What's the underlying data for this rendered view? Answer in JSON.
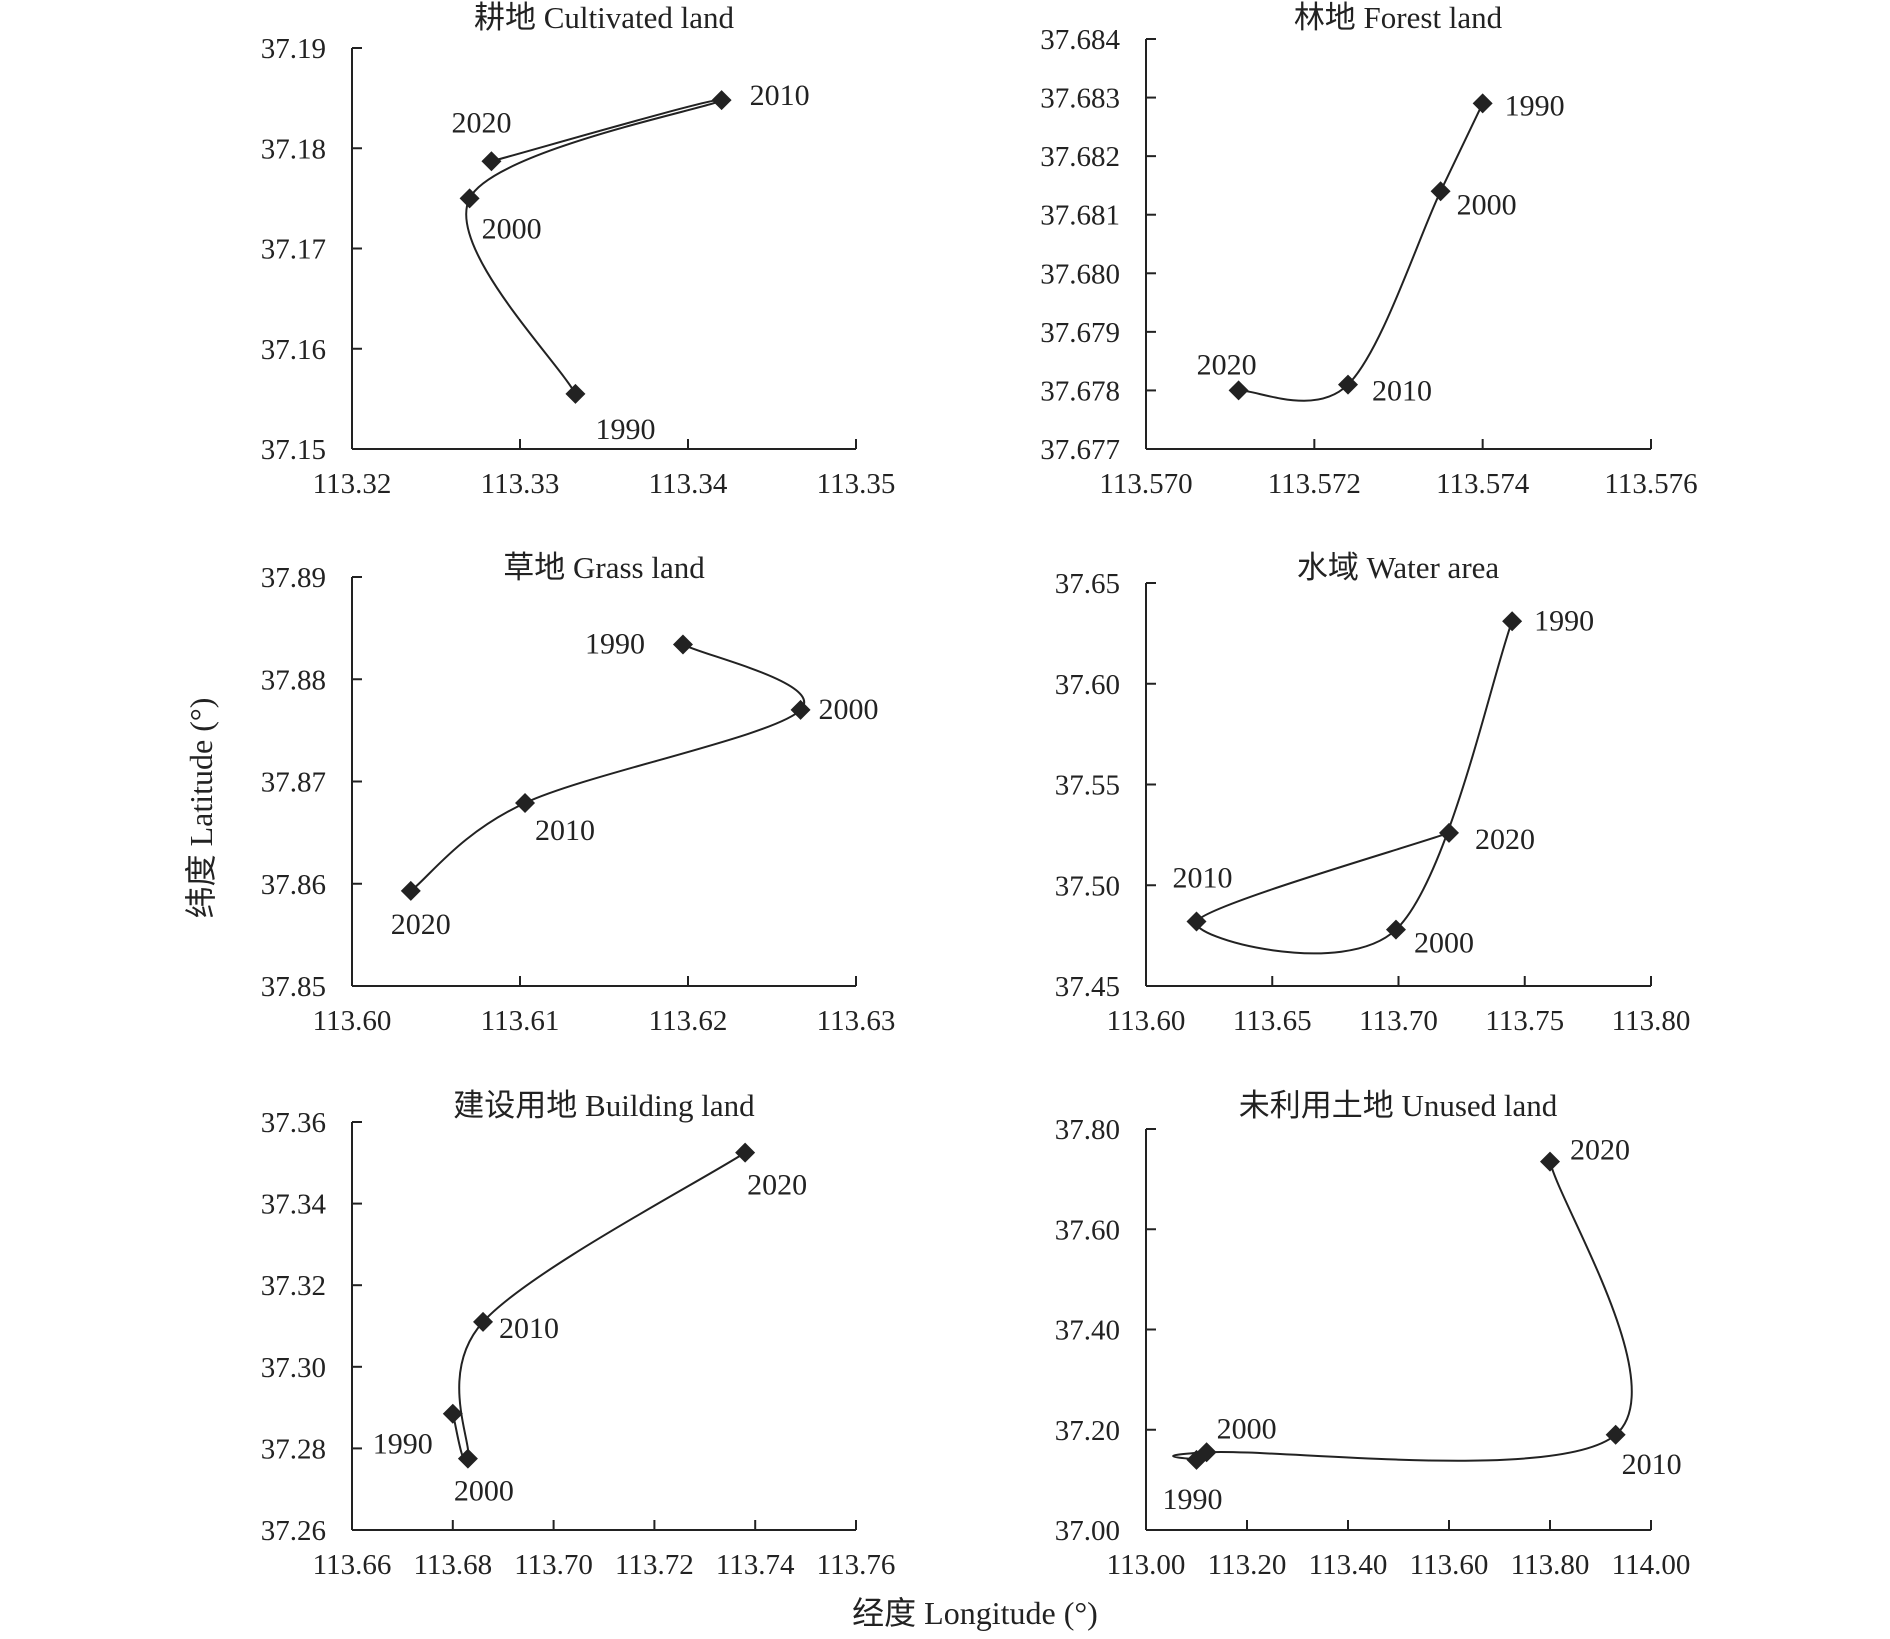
{
  "figure": {
    "ylabel": "纬度 Latitude (°)",
    "xlabel": "经度 Longitude (°)"
  },
  "chart_data": [
    {
      "type": "line",
      "title": "耕地 Cultivated land",
      "xlim": [
        113.32,
        113.35
      ],
      "ylim": [
        37.15,
        37.19
      ],
      "xticks": [
        "113.32",
        "113.33",
        "113.34",
        "113.35"
      ],
      "yticks": [
        "37.15",
        "37.16",
        "37.17",
        "37.18",
        "37.19"
      ],
      "points": [
        {
          "label": "1990",
          "x": 113.3333,
          "y": 37.1555
        },
        {
          "label": "2000",
          "x": 113.327,
          "y": 37.175
        },
        {
          "label": "2010",
          "x": 113.342,
          "y": 37.1848
        },
        {
          "label": "2020",
          "x": 113.3283,
          "y": 37.1787
        }
      ]
    },
    {
      "type": "line",
      "title": "林地 Forest land",
      "xlim": [
        113.57,
        113.576
      ],
      "ylim": [
        37.677,
        37.684
      ],
      "xticks": [
        "113.570",
        "113.572",
        "113.574",
        "113.576"
      ],
      "yticks": [
        "37.677",
        "37.678",
        "37.679",
        "37.680",
        "37.681",
        "37.682",
        "37.683",
        "37.684"
      ],
      "points": [
        {
          "label": "1990",
          "x": 113.574,
          "y": 37.6829
        },
        {
          "label": "2000",
          "x": 113.5735,
          "y": 37.6814
        },
        {
          "label": "2010",
          "x": 113.5724,
          "y": 37.6781
        },
        {
          "label": "2020",
          "x": 113.5711,
          "y": 37.678
        }
      ]
    },
    {
      "type": "line",
      "title": "草地 Grass land",
      "xlim": [
        113.6,
        113.63
      ],
      "ylim": [
        37.85,
        37.89
      ],
      "xticks": [
        "113.60",
        "113.61",
        "113.62",
        "113.63"
      ],
      "yticks": [
        "37.85",
        "37.86",
        "37.87",
        "37.88",
        "37.89"
      ],
      "points": [
        {
          "label": "1990",
          "x": 113.6197,
          "y": 37.8834
        },
        {
          "label": "2000",
          "x": 113.6267,
          "y": 37.877
        },
        {
          "label": "2010",
          "x": 113.6103,
          "y": 37.8679
        },
        {
          "label": "2020",
          "x": 113.6035,
          "y": 37.8593
        }
      ]
    },
    {
      "type": "line",
      "title": "水域 Water area",
      "xlim": [
        113.6,
        113.8
      ],
      "ylim": [
        37.45,
        37.65
      ],
      "xticks": [
        "113.60",
        "113.65",
        "113.70",
        "113.75",
        "113.80"
      ],
      "yticks": [
        "37.45",
        "37.50",
        "37.55",
        "37.60",
        "37.65"
      ],
      "points": [
        {
          "label": "1990",
          "x": 113.745,
          "y": 37.631
        },
        {
          "label": "2000",
          "x": 113.699,
          "y": 37.478
        },
        {
          "label": "2010",
          "x": 113.62,
          "y": 37.482
        },
        {
          "label": "2020",
          "x": 113.72,
          "y": 37.526
        }
      ]
    },
    {
      "type": "line",
      "title": "建设用地 Building land",
      "xlim": [
        113.66,
        113.76
      ],
      "ylim": [
        37.26,
        37.36
      ],
      "xticks": [
        "113.66",
        "113.68",
        "113.70",
        "113.72",
        "113.74",
        "113.76"
      ],
      "yticks": [
        "37.26",
        "37.28",
        "37.30",
        "37.32",
        "37.34",
        "37.36"
      ],
      "points": [
        {
          "label": "1990",
          "x": 113.68,
          "y": 37.2885
        },
        {
          "label": "2000",
          "x": 113.683,
          "y": 37.2775
        },
        {
          "label": "2010",
          "x": 113.686,
          "y": 37.311
        },
        {
          "label": "2020",
          "x": 113.738,
          "y": 37.3525
        }
      ]
    },
    {
      "type": "line",
      "title": "未利用土地 Unused land",
      "xlim": [
        113.0,
        114.0
      ],
      "ylim": [
        37.0,
        37.8
      ],
      "xticks": [
        "113.00",
        "113.20",
        "113.40",
        "113.60",
        "113.80",
        "114.00"
      ],
      "yticks": [
        "37.00",
        "37.20",
        "37.40",
        "37.60",
        "37.80"
      ],
      "points": [
        {
          "label": "1990",
          "x": 113.1,
          "y": 37.14
        },
        {
          "label": "2000",
          "x": 113.12,
          "y": 37.155
        },
        {
          "label": "2010",
          "x": 113.93,
          "y": 37.19
        },
        {
          "label": "2020",
          "x": 113.8,
          "y": 37.735
        }
      ]
    }
  ]
}
